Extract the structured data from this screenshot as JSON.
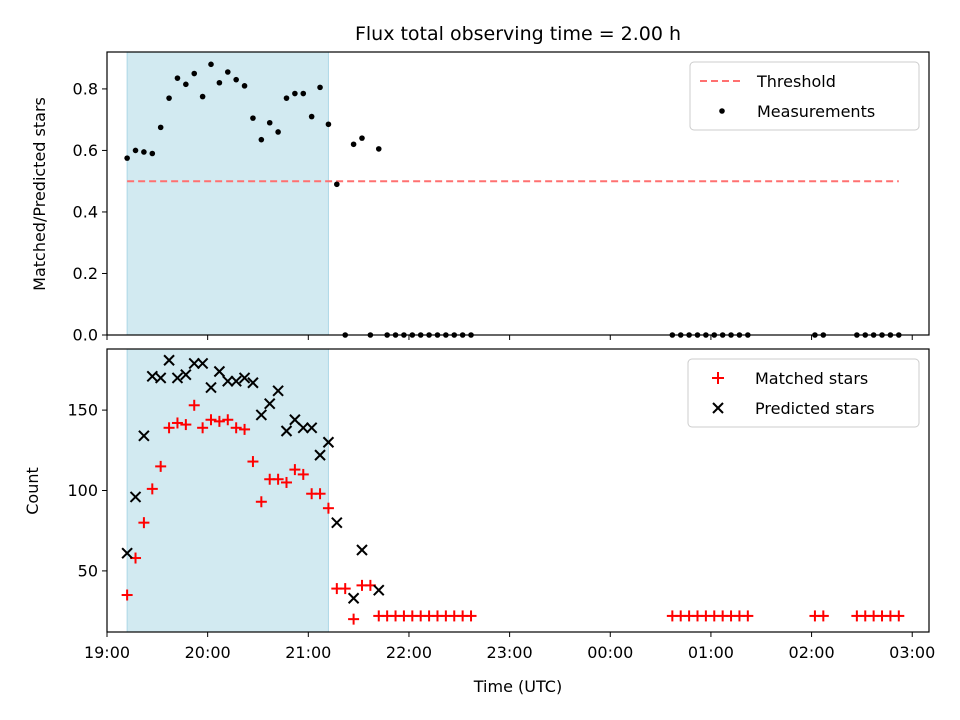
{
  "colors": {
    "span": "#add8e6",
    "threshold": "#ff7070",
    "measurement": "#000000",
    "matched": "#ff0000",
    "predicted": "#000000"
  },
  "chart_data": [
    {
      "type": "scatter",
      "title": "Flux total observing time = 2.00 h",
      "xlabel": "",
      "ylabel": "Matched/Predicted stars",
      "xlim": [
        "19:00",
        "03:10"
      ],
      "ylim": [
        0,
        0.92
      ],
      "yticks": [
        "0.0",
        "0.2",
        "0.4",
        "0.6",
        "0.8"
      ],
      "shaded_span": [
        "19:12",
        "21:12"
      ],
      "legend_position": "top-right",
      "threshold": {
        "name": "Threshold",
        "value": 0.5,
        "x_start": "19:12",
        "x_end": "02:52"
      },
      "series": [
        {
          "name": "Measurements",
          "x": [
            "19:12",
            "19:17",
            "19:22",
            "19:27",
            "19:32",
            "19:37",
            "19:42",
            "19:47",
            "19:52",
            "19:57",
            "20:02",
            "20:07",
            "20:12",
            "20:17",
            "20:22",
            "20:27",
            "20:32",
            "20:37",
            "20:42",
            "20:47",
            "20:52",
            "20:57",
            "21:02",
            "21:07",
            "21:12",
            "21:17",
            "21:22",
            "21:27",
            "21:32",
            "21:37",
            "21:42",
            "21:47",
            "21:52",
            "21:57",
            "22:02",
            "22:07",
            "22:12",
            "22:17",
            "22:22",
            "22:27",
            "22:32",
            "22:37",
            "00:37",
            "00:42",
            "00:47",
            "00:52",
            "00:57",
            "01:02",
            "01:07",
            "01:12",
            "01:17",
            "01:22",
            "02:02",
            "02:07",
            "02:27",
            "02:32",
            "02:37",
            "02:42",
            "02:47",
            "02:52"
          ],
          "y": [
            0.575,
            0.6,
            0.595,
            0.59,
            0.675,
            0.77,
            0.835,
            0.815,
            0.85,
            0.775,
            0.88,
            0.82,
            0.855,
            0.83,
            0.81,
            0.705,
            0.635,
            0.69,
            0.66,
            0.77,
            0.785,
            0.785,
            0.71,
            0.805,
            0.685,
            0.49,
            0.0,
            0.62,
            0.64,
            0.0,
            0.605,
            0.0,
            0.0,
            0.0,
            0.0,
            0.0,
            0.0,
            0.0,
            0.0,
            0.0,
            0.0,
            0.0,
            0.0,
            0.0,
            0.0,
            0.0,
            0.0,
            0.0,
            0.0,
            0.0,
            0.0,
            0.0,
            0.0,
            0.0,
            0.0,
            0.0,
            0.0,
            0.0,
            0.0,
            0.0
          ]
        }
      ]
    },
    {
      "type": "scatter",
      "title": "",
      "xlabel": "Time (UTC)",
      "ylabel": "Count",
      "xlim": [
        "19:00",
        "03:10"
      ],
      "ylim": [
        12,
        188
      ],
      "xticks": [
        "19:00",
        "20:00",
        "21:00",
        "22:00",
        "23:00",
        "00:00",
        "01:00",
        "02:00",
        "03:00"
      ],
      "yticks": [
        "50",
        "100",
        "150"
      ],
      "shaded_span": [
        "19:12",
        "21:12"
      ],
      "legend_position": "top-right",
      "series": [
        {
          "name": "Matched stars",
          "marker": "+",
          "x": [
            "19:12",
            "19:17",
            "19:22",
            "19:27",
            "19:32",
            "19:37",
            "19:42",
            "19:47",
            "19:52",
            "19:57",
            "20:02",
            "20:07",
            "20:12",
            "20:17",
            "20:22",
            "20:27",
            "20:32",
            "20:37",
            "20:42",
            "20:47",
            "20:52",
            "20:57",
            "21:02",
            "21:07",
            "21:12",
            "21:17",
            "21:22",
            "21:27",
            "21:32",
            "21:37",
            "21:42",
            "21:47",
            "21:52",
            "21:57",
            "22:02",
            "22:07",
            "22:12",
            "22:17",
            "22:22",
            "22:27",
            "22:32",
            "22:37",
            "00:37",
            "00:42",
            "00:47",
            "00:52",
            "00:57",
            "01:02",
            "01:07",
            "01:12",
            "01:17",
            "01:22",
            "02:02",
            "02:07",
            "02:27",
            "02:32",
            "02:37",
            "02:42",
            "02:47",
            "02:52"
          ],
          "y": [
            35,
            58,
            80,
            101,
            115,
            139,
            142,
            141,
            153,
            139,
            144,
            143,
            144,
            139,
            138,
            118,
            93,
            107,
            107,
            105,
            113,
            110,
            98,
            98,
            89,
            39,
            39,
            20,
            41,
            41,
            22,
            22,
            22,
            22,
            22,
            22,
            22,
            22,
            22,
            22,
            22,
            22,
            22,
            22,
            22,
            22,
            22,
            22,
            22,
            22,
            22,
            22,
            22,
            22,
            22,
            22,
            22,
            22,
            22,
            22
          ]
        },
        {
          "name": "Predicted stars",
          "marker": "x",
          "x": [
            "19:12",
            "19:17",
            "19:22",
            "19:27",
            "19:32",
            "19:37",
            "19:42",
            "19:47",
            "19:52",
            "19:57",
            "20:02",
            "20:07",
            "20:12",
            "20:17",
            "20:22",
            "20:27",
            "20:32",
            "20:37",
            "20:42",
            "20:47",
            "20:52",
            "20:57",
            "21:02",
            "21:07",
            "21:12",
            "21:17",
            "21:27",
            "21:32",
            "21:42"
          ],
          "y": [
            61,
            96,
            134,
            171,
            170,
            181,
            170,
            172,
            179,
            179,
            164,
            174,
            168,
            168,
            170,
            167,
            147,
            154,
            162,
            137,
            144,
            139,
            139,
            122,
            130,
            80,
            33,
            63,
            38
          ]
        }
      ]
    }
  ]
}
